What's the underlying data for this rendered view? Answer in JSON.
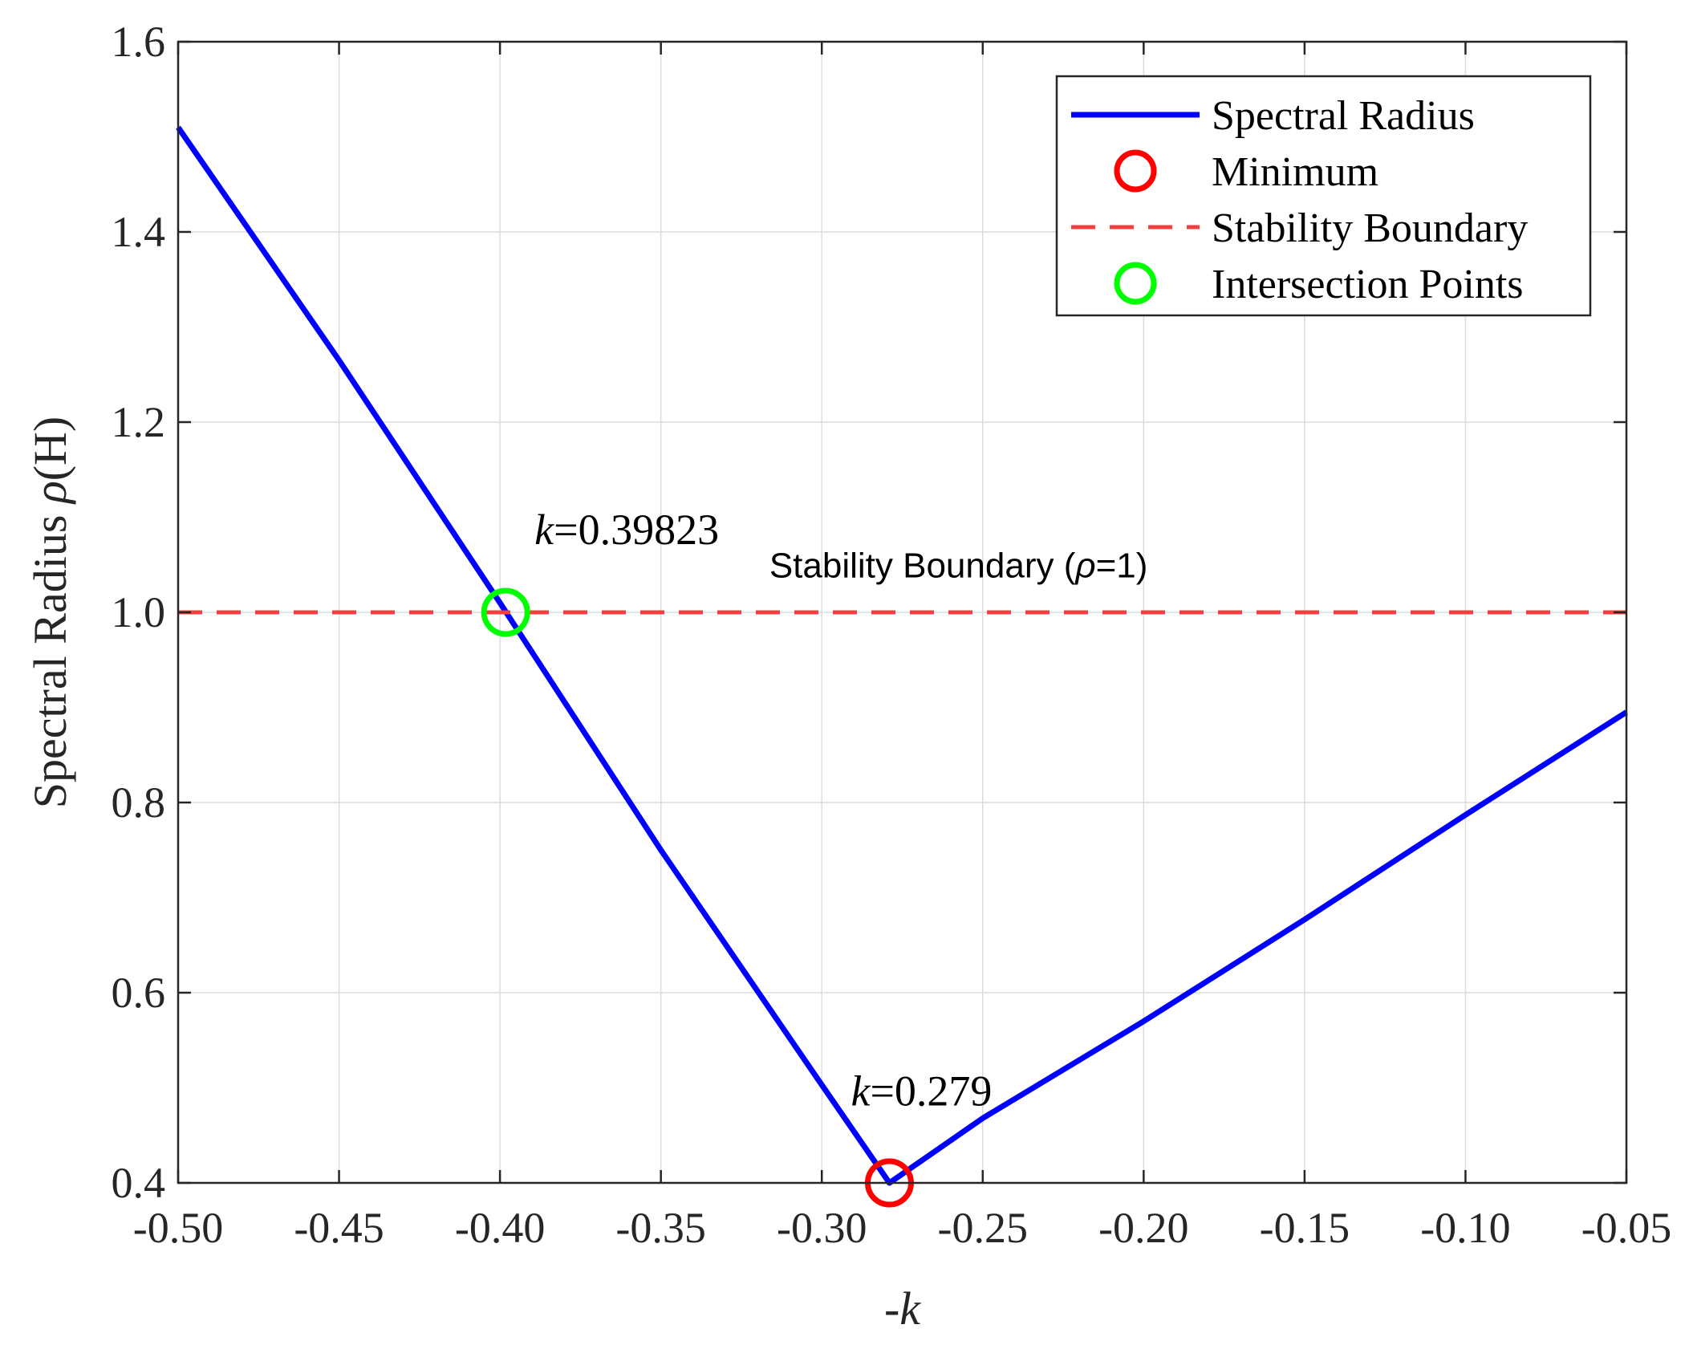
{
  "chart_data": {
    "type": "line",
    "title": "",
    "xlabel_prefix": "-",
    "xlabel_var": "k",
    "ylabel_text": "Spectral Radius ",
    "ylabel_symbol": "ρ",
    "ylabel_suffix": "(H)",
    "xlim": [
      -0.5,
      -0.05
    ],
    "ylim": [
      0.4,
      1.6
    ],
    "xticks": [
      -0.5,
      -0.45,
      -0.4,
      -0.35,
      -0.3,
      -0.25,
      -0.2,
      -0.15,
      -0.1,
      -0.05
    ],
    "xtick_labels": [
      "-0.50",
      "-0.45",
      "-0.40",
      "-0.35",
      "-0.30",
      "-0.25",
      "-0.20",
      "-0.15",
      "-0.10",
      "-0.05"
    ],
    "yticks": [
      0.4,
      0.6,
      0.8,
      1.0,
      1.2,
      1.4,
      1.6
    ],
    "ytick_labels": [
      "0.4",
      "0.6",
      "0.8",
      "1.0",
      "1.2",
      "1.4",
      "1.6"
    ],
    "grid": true,
    "series": [
      {
        "name": "Spectral Radius",
        "color": "#0000ff",
        "style": "solid",
        "points": [
          [
            -0.5,
            1.51
          ],
          [
            -0.45,
            1.265
          ],
          [
            -0.4,
            1.01
          ],
          [
            -0.35,
            0.75
          ],
          [
            -0.3,
            0.503
          ],
          [
            -0.279,
            0.4
          ],
          [
            -0.25,
            0.468
          ],
          [
            -0.2,
            0.57
          ],
          [
            -0.15,
            0.677
          ],
          [
            -0.1,
            0.787
          ],
          [
            -0.05,
            0.895
          ]
        ]
      },
      {
        "name": "Stability Boundary",
        "color": "#f04040",
        "style": "dashed",
        "points": [
          [
            -0.5,
            1.0
          ],
          [
            -0.05,
            1.0
          ]
        ]
      }
    ],
    "markers": [
      {
        "name": "Minimum",
        "x": -0.279,
        "y": 0.4,
        "color": "#ff0000"
      },
      {
        "name": "Intersection Points",
        "x": -0.39823,
        "y": 1.0,
        "color": "#00ff00"
      }
    ],
    "annotations": [
      {
        "id": "k1",
        "prefix": "k",
        "text": "=0.39823",
        "x": -0.398,
        "y": 1.08
      },
      {
        "id": "k2",
        "prefix": "k",
        "text": "=0.279",
        "x": -0.279,
        "y": 0.49
      }
    ],
    "boundary_label": {
      "text_before": "Stability Boundary (",
      "symbol": "ρ",
      "text_after": "=1)",
      "x": -0.265,
      "y": 1.045
    },
    "legend": {
      "position": "top-right",
      "entries": [
        {
          "label": "Spectral Radius",
          "kind": "line",
          "color": "#0000ff"
        },
        {
          "label": "Minimum",
          "kind": "circle",
          "color": "#ff0000"
        },
        {
          "label": "Stability Boundary",
          "kind": "dash",
          "color": "#f04040"
        },
        {
          "label": "Intersection Points",
          "kind": "circle",
          "color": "#00ff00"
        }
      ]
    }
  }
}
